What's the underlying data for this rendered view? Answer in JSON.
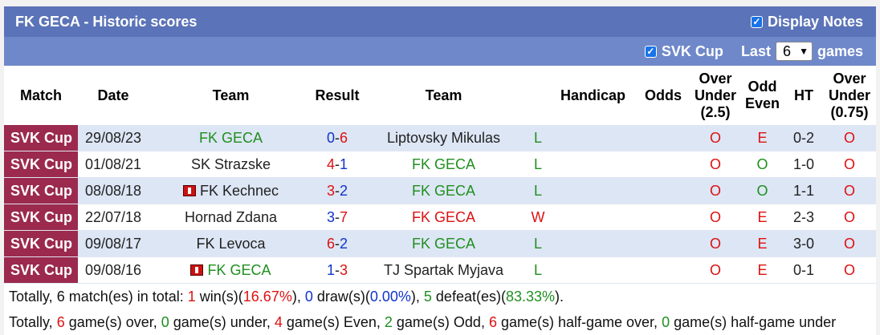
{
  "header": {
    "title": "FK GECA - Historic scores",
    "display_notes_label": "Display Notes"
  },
  "filter": {
    "competition_label": "SVK Cup",
    "last_label": "Last",
    "last_value": "6",
    "games_label": "games"
  },
  "columns": {
    "match": "Match",
    "date": "Date",
    "team": "Team",
    "result": "Result",
    "team2": "Team",
    "handicap": "Handicap",
    "odds": "Odds",
    "ou_1": "Over",
    "ou_2": "Under",
    "ou_3": "(2.5)",
    "oe_1": "Odd",
    "oe_2": "Even",
    "ht": "HT",
    "ou2_1": "Over",
    "ou2_2": "Under",
    "ou2_3": "(0.75)"
  },
  "rows": [
    {
      "comp": "SVK Cup",
      "date": "29/08/23",
      "home": "FK GECA",
      "home_flag": false,
      "home_color": "green",
      "score_home": "0",
      "score_away": "6",
      "score_home_color": "blue",
      "score_away_color": "red",
      "away": "Liptovsky Mikulas",
      "away_color": "dark",
      "wl": "L",
      "wl_color": "green",
      "handicap": "",
      "odds": "",
      "ou": "O",
      "ou_color": "red",
      "oe": "E",
      "oe_color": "red",
      "ht": "0-2",
      "ou2": "O",
      "ou2_color": "red"
    },
    {
      "comp": "SVK Cup",
      "date": "01/08/21",
      "home": "SK Strazske",
      "home_flag": false,
      "home_color": "dark",
      "score_home": "4",
      "score_away": "1",
      "score_home_color": "red",
      "score_away_color": "blue",
      "away": "FK GECA",
      "away_color": "green",
      "wl": "L",
      "wl_color": "green",
      "handicap": "",
      "odds": "",
      "ou": "O",
      "ou_color": "red",
      "oe": "O",
      "oe_color": "green",
      "ht": "1-0",
      "ou2": "O",
      "ou2_color": "red"
    },
    {
      "comp": "SVK Cup",
      "date": "08/08/18",
      "home": "FK Kechnec",
      "home_flag": true,
      "home_color": "dark",
      "score_home": "3",
      "score_away": "2",
      "score_home_color": "red",
      "score_away_color": "blue",
      "away": "FK GECA",
      "away_color": "green",
      "wl": "L",
      "wl_color": "green",
      "handicap": "",
      "odds": "",
      "ou": "O",
      "ou_color": "red",
      "oe": "O",
      "oe_color": "green",
      "ht": "1-1",
      "ou2": "O",
      "ou2_color": "red"
    },
    {
      "comp": "SVK Cup",
      "date": "22/07/18",
      "home": "Hornad Zdana",
      "home_flag": false,
      "home_color": "dark",
      "score_home": "3",
      "score_away": "7",
      "score_home_color": "blue",
      "score_away_color": "red",
      "away": "FK GECA",
      "away_color": "red",
      "wl": "W",
      "wl_color": "red",
      "handicap": "",
      "odds": "",
      "ou": "O",
      "ou_color": "red",
      "oe": "E",
      "oe_color": "red",
      "ht": "2-3",
      "ou2": "O",
      "ou2_color": "red"
    },
    {
      "comp": "SVK Cup",
      "date": "09/08/17",
      "home": "FK Levoca",
      "home_flag": false,
      "home_color": "dark",
      "score_home": "6",
      "score_away": "2",
      "score_home_color": "red",
      "score_away_color": "blue",
      "away": "FK GECA",
      "away_color": "green",
      "wl": "L",
      "wl_color": "green",
      "handicap": "",
      "odds": "",
      "ou": "O",
      "ou_color": "red",
      "oe": "E",
      "oe_color": "red",
      "ht": "3-0",
      "ou2": "O",
      "ou2_color": "red"
    },
    {
      "comp": "SVK Cup",
      "date": "09/08/16",
      "home": "FK GECA",
      "home_flag": true,
      "home_color": "green",
      "score_home": "1",
      "score_away": "3",
      "score_home_color": "blue",
      "score_away_color": "red",
      "away": "TJ Spartak Myjava",
      "away_color": "dark",
      "wl": "L",
      "wl_color": "green",
      "handicap": "",
      "odds": "",
      "ou": "O",
      "ou_color": "red",
      "oe": "E",
      "oe_color": "red",
      "ht": "0-1",
      "ou2": "O",
      "ou2_color": "red"
    }
  ],
  "summary1": [
    {
      "t": "Totally, ",
      "c": ""
    },
    {
      "t": "6",
      "c": "b"
    },
    {
      "t": " match(es) in total: ",
      "c": ""
    },
    {
      "t": "1",
      "c": "red b"
    },
    {
      "t": " win(s)(",
      "c": ""
    },
    {
      "t": "16.67%",
      "c": "red b"
    },
    {
      "t": "), ",
      "c": ""
    },
    {
      "t": "0",
      "c": "blue b"
    },
    {
      "t": " draw(s)(",
      "c": ""
    },
    {
      "t": "0.00%",
      "c": "blue b"
    },
    {
      "t": "), ",
      "c": ""
    },
    {
      "t": "5",
      "c": "green b"
    },
    {
      "t": " defeat(es)(",
      "c": ""
    },
    {
      "t": "83.33%",
      "c": "green b"
    },
    {
      "t": ").",
      "c": ""
    }
  ],
  "summary2": [
    {
      "t": "Totally, ",
      "c": ""
    },
    {
      "t": "6",
      "c": "red b"
    },
    {
      "t": " game(s) over, ",
      "c": ""
    },
    {
      "t": "0",
      "c": "green b"
    },
    {
      "t": " game(s) under, ",
      "c": ""
    },
    {
      "t": "4",
      "c": "red b"
    },
    {
      "t": " game(s) Even, ",
      "c": ""
    },
    {
      "t": "2",
      "c": "green b"
    },
    {
      "t": " game(s) Odd, ",
      "c": ""
    },
    {
      "t": "6",
      "c": "red b"
    },
    {
      "t": " game(s) half-game over, ",
      "c": ""
    },
    {
      "t": "0",
      "c": "green b"
    },
    {
      "t": " game(s) half-game under",
      "c": ""
    }
  ],
  "colors": {
    "title_bg": "#5b73b8",
    "filter_bg": "#6f88c9",
    "comp_bg": "#9b2a4e",
    "row_alt_bg": "#dde6f5",
    "green": "#1f8f1f",
    "red": "#dd1111",
    "blue": "#1133cc"
  }
}
